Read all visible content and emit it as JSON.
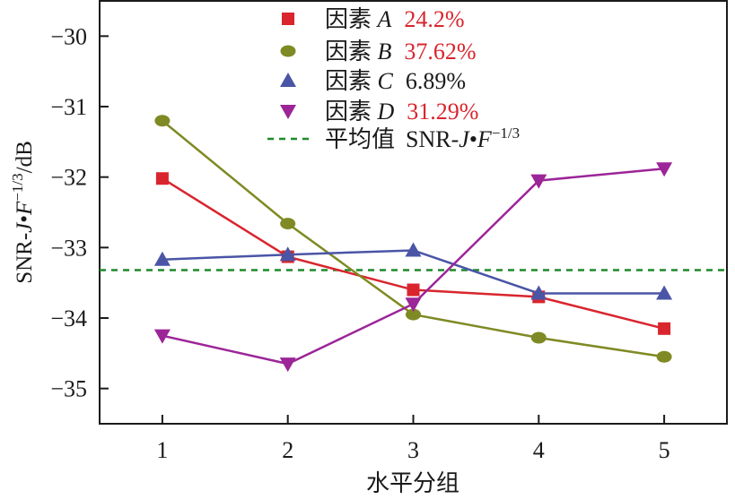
{
  "chart_data": {
    "type": "line",
    "xlabel": "水平分组",
    "ylabel": {
      "prefix": "SNR-",
      "j": "J",
      "dot": "•",
      "f": "F",
      "sup": "−1/3",
      "unit": "/dB"
    },
    "categories": [
      "1",
      "2",
      "3",
      "4",
      "5"
    ],
    "x": [
      1,
      2,
      3,
      4,
      5
    ],
    "xlim": [
      0.5,
      5.5
    ],
    "ylim": [
      -35.5,
      -29.5
    ],
    "yticks": [
      -35,
      -34,
      -33,
      -32,
      -31,
      -30
    ],
    "ytick_labels": [
      "−35",
      "−34",
      "−33",
      "−32",
      "−31",
      "−30"
    ],
    "series": [
      {
        "name": "A",
        "label": "因素",
        "pct": "24.2%",
        "color": "#d9252d",
        "pct_color": "#d9252d",
        "marker": "square",
        "values": [
          -32.02,
          -33.13,
          -33.6,
          -33.7,
          -34.15
        ]
      },
      {
        "name": "B",
        "label": "因素",
        "pct": "37.62%",
        "color": "#7f8a24",
        "pct_color": "#d9252d",
        "marker": "circle",
        "values": [
          -31.2,
          -32.66,
          -33.95,
          -34.28,
          -34.55
        ]
      },
      {
        "name": "C",
        "label": "因素",
        "pct": "6.89%",
        "color": "#4a55a6",
        "pct_color": "#1a1a1a",
        "marker": "triangle-up",
        "values": [
          -33.17,
          -33.1,
          -33.04,
          -33.65,
          -33.65
        ]
      },
      {
        "name": "D",
        "label": "因素",
        "pct": "31.29%",
        "color": "#9c2598",
        "pct_color": "#d9252d",
        "marker": "triangle-down",
        "values": [
          -34.25,
          -34.65,
          -33.8,
          -32.05,
          -31.88
        ]
      }
    ],
    "mean_line": {
      "value": -33.32,
      "color": "#1d8a2a",
      "label": "平均值",
      "label_prefix": "SNR-",
      "label_j": "J",
      "label_dot": "•",
      "label_f": "F",
      "label_sup": "−1/3"
    }
  }
}
